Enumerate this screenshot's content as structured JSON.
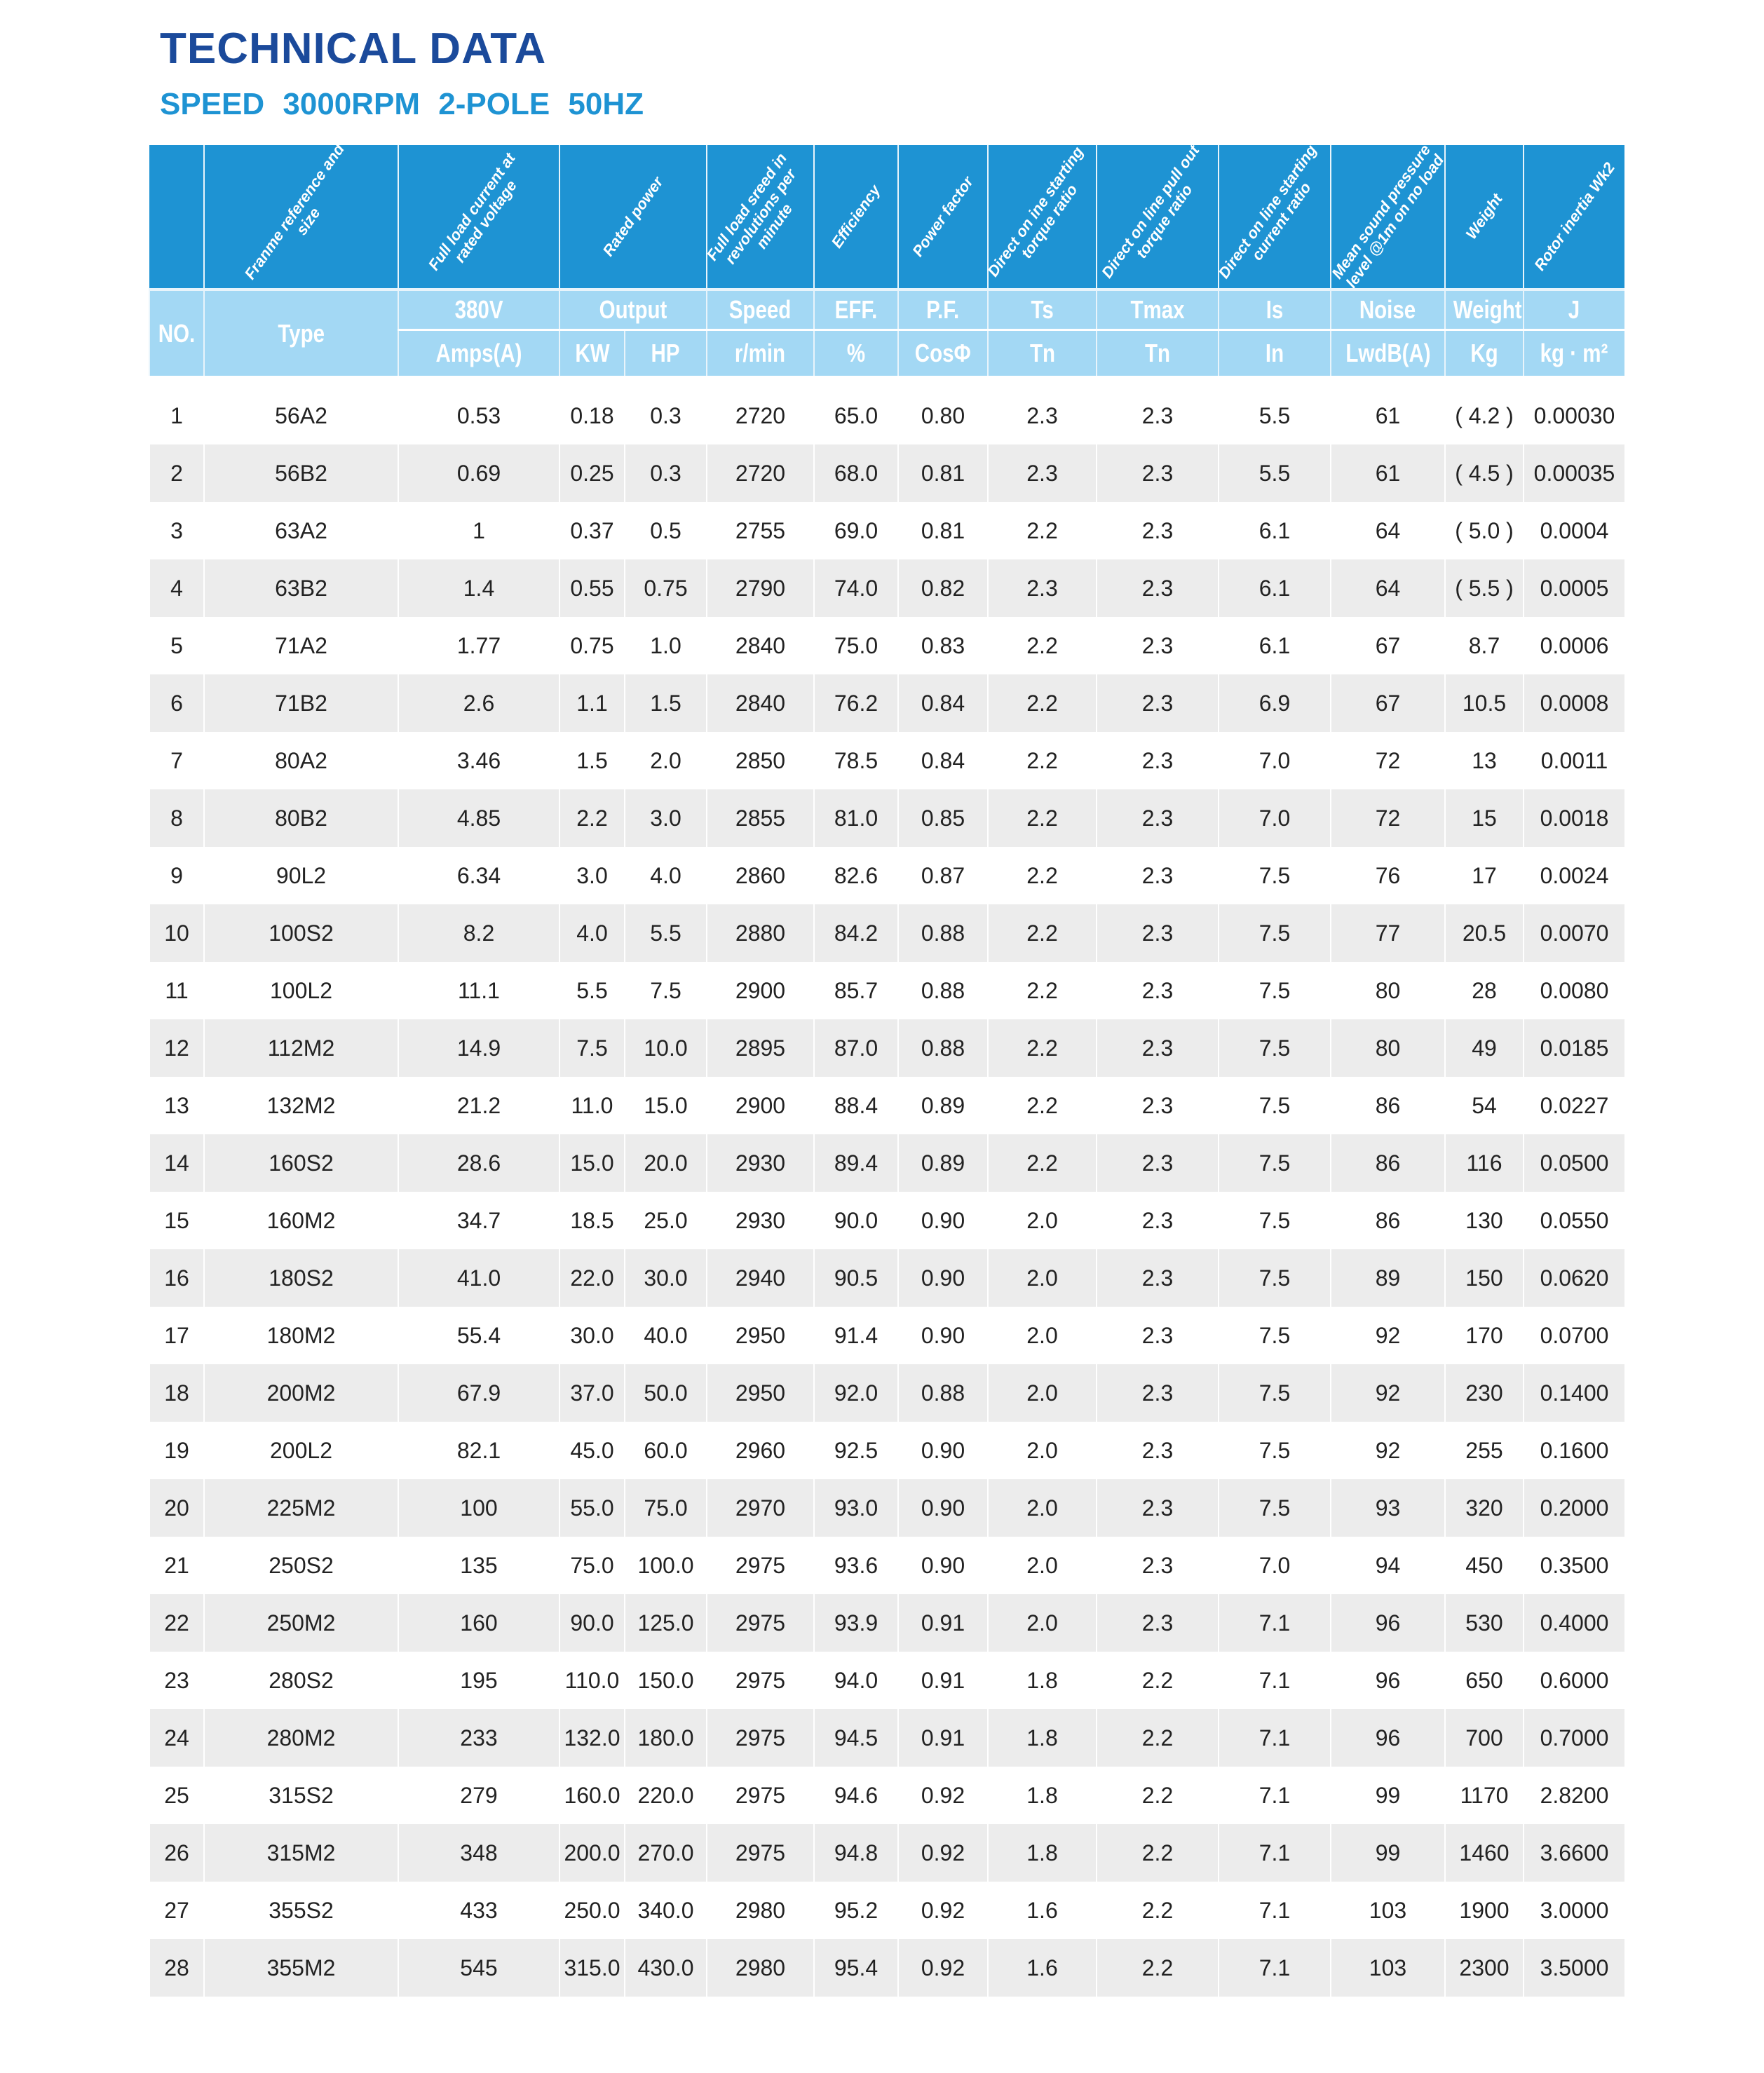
{
  "title": "TECHNICAL DATA",
  "subtitle": "SPEED  3000RPM  2-POLE 50HZ",
  "colors": {
    "header_dark": "#1e93d3",
    "header_light": "#a3d8f4",
    "title": "#1b4a9b",
    "stripe": "#ececec"
  },
  "header": {
    "descriptions": [
      "",
      "Franme reference and size",
      "Full load current at rated voltage",
      "Rated power",
      "Full load sreed in revolutions per minute",
      "Efficiency",
      "Power factor",
      "Direct on ine starting torque ratio",
      "Direct on line pull out torque ratio",
      "Direct on line starting current ratio",
      "Mean sound pressure level @1m on no load",
      "Weight",
      "Rotor inertia Wk2"
    ],
    "no": "NO.",
    "type": "Type",
    "row2": [
      "380V",
      "Output",
      "Speed",
      "EFF.",
      "P.F.",
      "Ts",
      "Tmax",
      "Is",
      "Noise",
      "Weight",
      "J"
    ],
    "row3": [
      "Amps(A)",
      "KW",
      "HP",
      "r/min",
      "%",
      "CosΦ",
      "Tn",
      "Tn",
      "In",
      "LwdB(A)",
      "Kg",
      "kg · m²"
    ]
  },
  "rows": [
    [
      "1",
      "56A2",
      "0.53",
      "0.18",
      "0.3",
      "2720",
      "65.0",
      "0.80",
      "2.3",
      "2.3",
      "5.5",
      "61",
      "( 4.2 )",
      "0.00030"
    ],
    [
      "2",
      "56B2",
      "0.69",
      "0.25",
      "0.3",
      "2720",
      "68.0",
      "0.81",
      "2.3",
      "2.3",
      "5.5",
      "61",
      "( 4.5 )",
      "0.00035"
    ],
    [
      "3",
      "63A2",
      "1",
      "0.37",
      "0.5",
      "2755",
      "69.0",
      "0.81",
      "2.2",
      "2.3",
      "6.1",
      "64",
      "( 5.0 )",
      "0.0004"
    ],
    [
      "4",
      "63B2",
      "1.4",
      "0.55",
      "0.75",
      "2790",
      "74.0",
      "0.82",
      "2.3",
      "2.3",
      "6.1",
      "64",
      "( 5.5 )",
      "0.0005"
    ],
    [
      "5",
      "71A2",
      "1.77",
      "0.75",
      "1.0",
      "2840",
      "75.0",
      "0.83",
      "2.2",
      "2.3",
      "6.1",
      "67",
      "8.7",
      "0.0006"
    ],
    [
      "6",
      "71B2",
      "2.6",
      "1.1",
      "1.5",
      "2840",
      "76.2",
      "0.84",
      "2.2",
      "2.3",
      "6.9",
      "67",
      "10.5",
      "0.0008"
    ],
    [
      "7",
      "80A2",
      "3.46",
      "1.5",
      "2.0",
      "2850",
      "78.5",
      "0.84",
      "2.2",
      "2.3",
      "7.0",
      "72",
      "13",
      "0.0011"
    ],
    [
      "8",
      "80B2",
      "4.85",
      "2.2",
      "3.0",
      "2855",
      "81.0",
      "0.85",
      "2.2",
      "2.3",
      "7.0",
      "72",
      "15",
      "0.0018"
    ],
    [
      "9",
      "90L2",
      "6.34",
      "3.0",
      "4.0",
      "2860",
      "82.6",
      "0.87",
      "2.2",
      "2.3",
      "7.5",
      "76",
      "17",
      "0.0024"
    ],
    [
      "10",
      "100S2",
      "8.2",
      "4.0",
      "5.5",
      "2880",
      "84.2",
      "0.88",
      "2.2",
      "2.3",
      "7.5",
      "77",
      "20.5",
      "0.0070"
    ],
    [
      "11",
      "100L2",
      "11.1",
      "5.5",
      "7.5",
      "2900",
      "85.7",
      "0.88",
      "2.2",
      "2.3",
      "7.5",
      "80",
      "28",
      "0.0080"
    ],
    [
      "12",
      "112M2",
      "14.9",
      "7.5",
      "10.0",
      "2895",
      "87.0",
      "0.88",
      "2.2",
      "2.3",
      "7.5",
      "80",
      "49",
      "0.0185"
    ],
    [
      "13",
      "132M2",
      "21.2",
      "11.0",
      "15.0",
      "2900",
      "88.4",
      "0.89",
      "2.2",
      "2.3",
      "7.5",
      "86",
      "54",
      "0.0227"
    ],
    [
      "14",
      "160S2",
      "28.6",
      "15.0",
      "20.0",
      "2930",
      "89.4",
      "0.89",
      "2.2",
      "2.3",
      "7.5",
      "86",
      "116",
      "0.0500"
    ],
    [
      "15",
      "160M2",
      "34.7",
      "18.5",
      "25.0",
      "2930",
      "90.0",
      "0.90",
      "2.0",
      "2.3",
      "7.5",
      "86",
      "130",
      "0.0550"
    ],
    [
      "16",
      "180S2",
      "41.0",
      "22.0",
      "30.0",
      "2940",
      "90.5",
      "0.90",
      "2.0",
      "2.3",
      "7.5",
      "89",
      "150",
      "0.0620"
    ],
    [
      "17",
      "180M2",
      "55.4",
      "30.0",
      "40.0",
      "2950",
      "91.4",
      "0.90",
      "2.0",
      "2.3",
      "7.5",
      "92",
      "170",
      "0.0700"
    ],
    [
      "18",
      "200M2",
      "67.9",
      "37.0",
      "50.0",
      "2950",
      "92.0",
      "0.88",
      "2.0",
      "2.3",
      "7.5",
      "92",
      "230",
      "0.1400"
    ],
    [
      "19",
      "200L2",
      "82.1",
      "45.0",
      "60.0",
      "2960",
      "92.5",
      "0.90",
      "2.0",
      "2.3",
      "7.5",
      "92",
      "255",
      "0.1600"
    ],
    [
      "20",
      "225M2",
      "100",
      "55.0",
      "75.0",
      "2970",
      "93.0",
      "0.90",
      "2.0",
      "2.3",
      "7.5",
      "93",
      "320",
      "0.2000"
    ],
    [
      "21",
      "250S2",
      "135",
      "75.0",
      "100.0",
      "2975",
      "93.6",
      "0.90",
      "2.0",
      "2.3",
      "7.0",
      "94",
      "450",
      "0.3500"
    ],
    [
      "22",
      "250M2",
      "160",
      "90.0",
      "125.0",
      "2975",
      "93.9",
      "0.91",
      "2.0",
      "2.3",
      "7.1",
      "96",
      "530",
      "0.4000"
    ],
    [
      "23",
      "280S2",
      "195",
      "110.0",
      "150.0",
      "2975",
      "94.0",
      "0.91",
      "1.8",
      "2.2",
      "7.1",
      "96",
      "650",
      "0.6000"
    ],
    [
      "24",
      "280M2",
      "233",
      "132.0",
      "180.0",
      "2975",
      "94.5",
      "0.91",
      "1.8",
      "2.2",
      "7.1",
      "96",
      "700",
      "0.7000"
    ],
    [
      "25",
      "315S2",
      "279",
      "160.0",
      "220.0",
      "2975",
      "94.6",
      "0.92",
      "1.8",
      "2.2",
      "7.1",
      "99",
      "1170",
      "2.8200"
    ],
    [
      "26",
      "315M2",
      "348",
      "200.0",
      "270.0",
      "2975",
      "94.8",
      "0.92",
      "1.8",
      "2.2",
      "7.1",
      "99",
      "1460",
      "3.6600"
    ],
    [
      "27",
      "355S2",
      "433",
      "250.0",
      "340.0",
      "2980",
      "95.2",
      "0.92",
      "1.6",
      "2.2",
      "7.1",
      "103",
      "1900",
      "3.0000"
    ],
    [
      "28",
      "355M2",
      "545",
      "315.0",
      "430.0",
      "2980",
      "95.4",
      "0.92",
      "1.6",
      "2.2",
      "7.1",
      "103",
      "2300",
      "3.5000"
    ]
  ]
}
